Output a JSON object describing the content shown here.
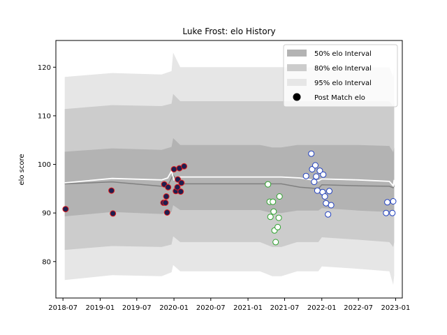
{
  "chart_data": {
    "type": "scatter",
    "title": "Luke Frost: elo History",
    "xlabel": "",
    "ylabel": "elo score",
    "xlim": [
      "2018-05-27",
      "2023-02-03"
    ],
    "ylim": [
      72.5,
      125.5
    ],
    "x_ticks": [
      "2018-07-01",
      "2019-01-01",
      "2019-07-01",
      "2020-01-01",
      "2020-07-01",
      "2021-01-01",
      "2021-07-01",
      "2022-01-01",
      "2022-07-01",
      "2023-01-01"
    ],
    "x_tick_labels": [
      "2018-07",
      "2019-01",
      "2019-07",
      "2020-01",
      "2020-07",
      "2021-01",
      "2021-07",
      "2022-01",
      "2022-07",
      "2023-01"
    ],
    "y_ticks": [
      80,
      90,
      100,
      110,
      120
    ],
    "grid": false,
    "legend": {
      "placement": "top-right",
      "entries": [
        "50% elo Interval",
        "80% elo Interval",
        "95% elo Interval",
        "Post Match elo"
      ]
    },
    "colors": {
      "band50": "#b3b3b3",
      "band80": "#cccccc",
      "band95": "#e6e6e6",
      "mean_line": "#808080",
      "median_line": "#ffffff",
      "marker_edge_red": "#e41a1c",
      "marker_edge_green": "#2ca02c",
      "marker_edge_blue": "#1f3fbf",
      "marker_fill_dark": "#1f1f4f",
      "marker_fill_white": "#ffffff"
    },
    "bands": {
      "dates": [
        "2018-07-10",
        "2019-03-01",
        "2019-11-01",
        "2019-12-20",
        "2019-12-28",
        "2020-02-01",
        "2020-07-01",
        "2021-03-01",
        "2021-05-01",
        "2021-06-15",
        "2021-09-01",
        "2021-12-15",
        "2022-01-01",
        "2022-07-01",
        "2022-12-01",
        "2022-12-20",
        "2022-12-25"
      ],
      "lo95": [
        76.2,
        77.2,
        77.0,
        77.8,
        79.3,
        78.0,
        78.0,
        78.0,
        77.0,
        77.0,
        78.0,
        78.0,
        79.0,
        78.5,
        78.0,
        75.2,
        77.2
      ],
      "lo80": [
        82.4,
        83.2,
        83.0,
        83.5,
        85.2,
        84.0,
        84.0,
        84.0,
        83.0,
        83.0,
        84.0,
        84.0,
        85.0,
        84.5,
        84.0,
        83.0,
        84.0
      ],
      "lo50": [
        89.3,
        90.2,
        89.8,
        90.2,
        91.6,
        90.6,
        90.6,
        90.6,
        90.0,
        90.0,
        90.5,
        90.5,
        91.0,
        90.5,
        90.2,
        89.5,
        90.0
      ],
      "hi50": [
        102.6,
        103.3,
        103.0,
        103.6,
        105.4,
        104.0,
        104.0,
        104.0,
        103.5,
        103.5,
        104.0,
        104.0,
        104.0,
        104.0,
        103.8,
        102.5,
        103.5
      ],
      "hi80": [
        111.4,
        112.2,
        112.0,
        112.5,
        114.5,
        113.0,
        113.0,
        113.0,
        113.0,
        113.0,
        113.0,
        113.0,
        113.0,
        113.0,
        113.0,
        112.0,
        113.0
      ],
      "hi95": [
        118.0,
        118.8,
        118.5,
        119.2,
        123.0,
        120.0,
        120.0,
        120.0,
        120.0,
        120.0,
        120.0,
        120.0,
        120.0,
        120.0,
        120.0,
        118.0,
        120.0
      ]
    },
    "mean_line": {
      "dates": [
        "2018-07-10",
        "2019-03-01",
        "2019-11-01",
        "2019-12-01",
        "2019-12-28",
        "2020-02-01",
        "2020-07-01",
        "2021-03-01",
        "2021-06-15",
        "2021-09-15",
        "2021-12-15",
        "2022-01-01",
        "2022-07-01",
        "2022-12-01",
        "2022-12-20",
        "2022-12-25"
      ],
      "values": [
        96.0,
        96.4,
        95.5,
        95.6,
        97.8,
        96.0,
        96.0,
        96.0,
        96.0,
        95.3,
        95.0,
        95.8,
        95.6,
        95.5,
        95.2,
        95.6
      ]
    },
    "median_line": {
      "dates": [
        "2018-07-10",
        "2019-03-01",
        "2019-11-01",
        "2019-12-01",
        "2019-12-20",
        "2020-01-01",
        "2020-02-01",
        "2020-07-01",
        "2021-03-01",
        "2021-06-15",
        "2021-09-15",
        "2021-12-15",
        "2022-01-01",
        "2022-07-01",
        "2022-12-01",
        "2022-12-20",
        "2022-12-25"
      ],
      "values": [
        96.2,
        97.1,
        96.8,
        97.2,
        98.6,
        96.8,
        97.4,
        97.4,
        97.4,
        97.4,
        97.2,
        96.6,
        97.0,
        96.8,
        96.5,
        95.6,
        96.8
      ]
    },
    "series": [
      {
        "name": "Post Match elo",
        "points": [
          {
            "x": "2018-07-14",
            "y": 90.8,
            "edge": "red",
            "fill": "dark"
          },
          {
            "x": "2019-02-26",
            "y": 94.6,
            "edge": "red",
            "fill": "dark"
          },
          {
            "x": "2019-03-05",
            "y": 89.9,
            "edge": "red",
            "fill": "dark"
          },
          {
            "x": "2019-11-14",
            "y": 95.9,
            "edge": "red",
            "fill": "dark"
          },
          {
            "x": "2019-11-10",
            "y": 92.1,
            "edge": "red",
            "fill": "dark"
          },
          {
            "x": "2019-11-20",
            "y": 92.1,
            "edge": "red",
            "fill": "dark"
          },
          {
            "x": "2019-11-24",
            "y": 93.4,
            "edge": "red",
            "fill": "dark"
          },
          {
            "x": "2019-11-28",
            "y": 90.1,
            "edge": "red",
            "fill": "dark"
          },
          {
            "x": "2019-12-03",
            "y": 95.3,
            "edge": "red",
            "fill": "dark"
          },
          {
            "x": "2020-01-01",
            "y": 99.0,
            "edge": "red",
            "fill": "dark"
          },
          {
            "x": "2020-01-10",
            "y": 94.5,
            "edge": "red",
            "fill": "dark"
          },
          {
            "x": "2020-01-18",
            "y": 95.3,
            "edge": "red",
            "fill": "dark"
          },
          {
            "x": "2020-01-20",
            "y": 96.9,
            "edge": "red",
            "fill": "dark"
          },
          {
            "x": "2020-01-28",
            "y": 99.2,
            "edge": "red",
            "fill": "dark"
          },
          {
            "x": "2020-02-03",
            "y": 94.4,
            "edge": "red",
            "fill": "dark"
          },
          {
            "x": "2020-02-07",
            "y": 96.2,
            "edge": "red",
            "fill": "dark"
          },
          {
            "x": "2020-02-20",
            "y": 99.6,
            "edge": "red",
            "fill": "dark"
          },
          {
            "x": "2021-04-10",
            "y": 95.9,
            "edge": "green",
            "fill": "white"
          },
          {
            "x": "2021-04-18",
            "y": 92.3,
            "edge": "green",
            "fill": "white"
          },
          {
            "x": "2021-04-22",
            "y": 89.2,
            "edge": "green",
            "fill": "white"
          },
          {
            "x": "2021-05-04",
            "y": 92.3,
            "edge": "green",
            "fill": "white"
          },
          {
            "x": "2021-05-08",
            "y": 90.3,
            "edge": "green",
            "fill": "white"
          },
          {
            "x": "2021-05-12",
            "y": 86.4,
            "edge": "green",
            "fill": "white"
          },
          {
            "x": "2021-05-18",
            "y": 84.0,
            "edge": "green",
            "fill": "white"
          },
          {
            "x": "2021-05-28",
            "y": 87.1,
            "edge": "green",
            "fill": "white"
          },
          {
            "x": "2021-06-02",
            "y": 89.0,
            "edge": "green",
            "fill": "white"
          },
          {
            "x": "2021-06-06",
            "y": 93.4,
            "edge": "green",
            "fill": "white"
          },
          {
            "x": "2021-10-15",
            "y": 97.6,
            "edge": "blue",
            "fill": "white"
          },
          {
            "x": "2021-11-10",
            "y": 102.2,
            "edge": "blue",
            "fill": "white"
          },
          {
            "x": "2021-11-14",
            "y": 99.0,
            "edge": "blue",
            "fill": "white"
          },
          {
            "x": "2021-11-24",
            "y": 96.4,
            "edge": "blue",
            "fill": "white"
          },
          {
            "x": "2021-11-30",
            "y": 99.8,
            "edge": "blue",
            "fill": "white"
          },
          {
            "x": "2021-12-04",
            "y": 97.5,
            "edge": "blue",
            "fill": "white"
          },
          {
            "x": "2021-12-10",
            "y": 94.6,
            "edge": "blue",
            "fill": "white"
          },
          {
            "x": "2021-12-22",
            "y": 98.7,
            "edge": "blue",
            "fill": "white"
          },
          {
            "x": "2022-01-05",
            "y": 94.3,
            "edge": "blue",
            "fill": "white"
          },
          {
            "x": "2022-01-08",
            "y": 97.9,
            "edge": "blue",
            "fill": "white"
          },
          {
            "x": "2022-01-16",
            "y": 93.4,
            "edge": "blue",
            "fill": "white"
          },
          {
            "x": "2022-01-22",
            "y": 92.0,
            "edge": "blue",
            "fill": "white"
          },
          {
            "x": "2022-02-01",
            "y": 89.7,
            "edge": "blue",
            "fill": "white"
          },
          {
            "x": "2022-02-07",
            "y": 94.5,
            "edge": "blue",
            "fill": "white"
          },
          {
            "x": "2022-02-16",
            "y": 91.6,
            "edge": "blue",
            "fill": "white"
          },
          {
            "x": "2022-11-15",
            "y": 90.0,
            "edge": "blue",
            "fill": "white"
          },
          {
            "x": "2022-11-21",
            "y": 92.2,
            "edge": "blue",
            "fill": "white"
          },
          {
            "x": "2022-12-16",
            "y": 90.0,
            "edge": "blue",
            "fill": "white"
          },
          {
            "x": "2022-12-20",
            "y": 92.4,
            "edge": "blue",
            "fill": "white"
          }
        ]
      }
    ]
  }
}
